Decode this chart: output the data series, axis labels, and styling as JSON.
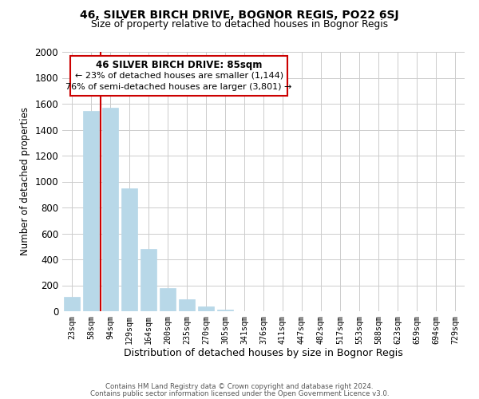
{
  "title1": "46, SILVER BIRCH DRIVE, BOGNOR REGIS, PO22 6SJ",
  "title2": "Size of property relative to detached houses in Bognor Regis",
  "xlabel": "Distribution of detached houses by size in Bognor Regis",
  "ylabel": "Number of detached properties",
  "bar_labels": [
    "23sqm",
    "58sqm",
    "94sqm",
    "129sqm",
    "164sqm",
    "200sqm",
    "235sqm",
    "270sqm",
    "305sqm",
    "341sqm",
    "376sqm",
    "411sqm",
    "447sqm",
    "482sqm",
    "517sqm",
    "553sqm",
    "588sqm",
    "623sqm",
    "659sqm",
    "694sqm",
    "729sqm"
  ],
  "bar_values": [
    110,
    1545,
    1570,
    950,
    480,
    180,
    95,
    35,
    10,
    0,
    0,
    0,
    0,
    0,
    0,
    0,
    0,
    0,
    0,
    0,
    0
  ],
  "bar_color": "#b8d8e8",
  "bar_edge_color": "#b8d8e8",
  "vline_color": "#cc0000",
  "ylim": [
    0,
    2000
  ],
  "yticks": [
    0,
    200,
    400,
    600,
    800,
    1000,
    1200,
    1400,
    1600,
    1800,
    2000
  ],
  "annotation_title": "46 SILVER BIRCH DRIVE: 85sqm",
  "annotation_line1": "← 23% of detached houses are smaller (1,144)",
  "annotation_line2": "76% of semi-detached houses are larger (3,801) →",
  "footer1": "Contains HM Land Registry data © Crown copyright and database right 2024.",
  "footer2": "Contains public sector information licensed under the Open Government Licence v3.0.",
  "background_color": "#ffffff",
  "grid_color": "#cccccc"
}
